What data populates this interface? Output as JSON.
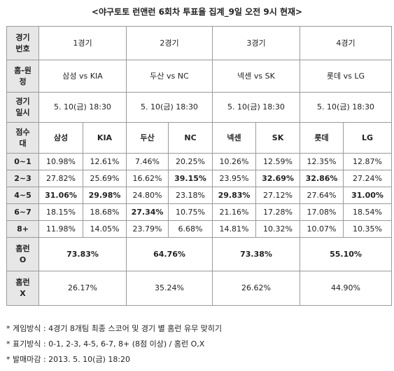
{
  "title": "<야구토토 런앤런 6회차 투표율 집계_9일 오전 9시 현재>",
  "headers": {
    "game_no": "경기\n번호",
    "home_away": "홈-원\n정",
    "game_date": "경기\n일시",
    "score_band": "점수\n대",
    "hr_o": "홈런\nO",
    "hr_x": "홈런\nX"
  },
  "games": [
    {
      "label": "1경기",
      "matchup": "삼성 vs KIA",
      "datetime": "5. 10(금) 18:30",
      "home": "삼성",
      "away": "KIA",
      "hr_o": "73.83%",
      "hr_x": "26.17%"
    },
    {
      "label": "2경기",
      "matchup": "두산 vs NC",
      "datetime": "5. 10(금) 18:30",
      "home": "두산",
      "away": "NC",
      "hr_o": "64.76%",
      "hr_x": "35.24%"
    },
    {
      "label": "3경기",
      "matchup": "넥센 vs SK",
      "datetime": "5. 10(금) 18:30",
      "home": "넥센",
      "away": "SK",
      "hr_o": "73.38%",
      "hr_x": "26.62%"
    },
    {
      "label": "4경기",
      "matchup": "롯데 vs LG",
      "datetime": "5. 10(금) 18:30",
      "home": "롯데",
      "away": "LG",
      "hr_o": "55.10%",
      "hr_x": "44.90%"
    }
  ],
  "rows": [
    {
      "band": "0~1",
      "values": [
        "10.98%",
        "12.61%",
        "7.46%",
        "20.25%",
        "10.26%",
        "12.59%",
        "12.35%",
        "12.87%"
      ],
      "bold": []
    },
    {
      "band": "2~3",
      "values": [
        "27.82%",
        "25.69%",
        "16.62%",
        "39.15%",
        "23.95%",
        "32.69%",
        "32.86%",
        "27.24%"
      ],
      "bold": [
        3,
        5,
        6
      ]
    },
    {
      "band": "4~5",
      "values": [
        "31.06%",
        "29.98%",
        "24.80%",
        "23.18%",
        "29.83%",
        "27.12%",
        "27.64%",
        "31.00%"
      ],
      "bold": [
        0,
        1,
        4,
        7
      ]
    },
    {
      "band": "6~7",
      "values": [
        "18.15%",
        "18.68%",
        "27.34%",
        "10.75%",
        "21.16%",
        "17.28%",
        "17.08%",
        "18.54%"
      ],
      "bold": [
        2
      ]
    },
    {
      "band": "8+",
      "values": [
        "11.98%",
        "14.05%",
        "23.79%",
        "6.68%",
        "14.81%",
        "10.32%",
        "10.07%",
        "10.35%"
      ],
      "bold": []
    }
  ],
  "notes": [
    "* 게임방식 : 4경기 8개팀 최종 스코어 및 경기 별 홈런 유무 맞히기",
    "* 표기방식 : 0-1, 2-3, 4-5, 6-7, 8+ (8점 이상) / 홈런 O,X",
    "* 발매마감 : 2013. 5. 10(금) 18:20"
  ]
}
